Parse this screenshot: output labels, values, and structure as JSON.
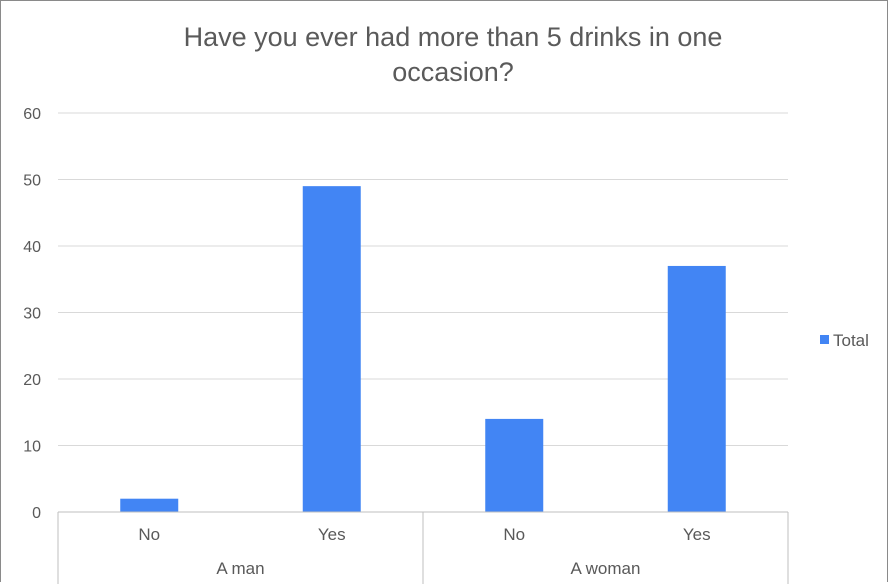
{
  "chart_data": {
    "type": "bar",
    "title_lines": [
      "Have you ever had more than 5 drinks in one",
      "occasion?"
    ],
    "groups": [
      {
        "label": "A man",
        "categories": [
          "No",
          "Yes"
        ]
      },
      {
        "label": "A woman",
        "categories": [
          "No",
          "Yes"
        ]
      }
    ],
    "series": [
      {
        "name": "Total",
        "values": [
          2,
          49,
          14,
          37
        ],
        "color": "#4285f4"
      }
    ],
    "ylim": [
      0,
      60
    ],
    "yticks": [
      0,
      10,
      20,
      30,
      40,
      50,
      60
    ],
    "grid": true,
    "legend_position": "right"
  }
}
